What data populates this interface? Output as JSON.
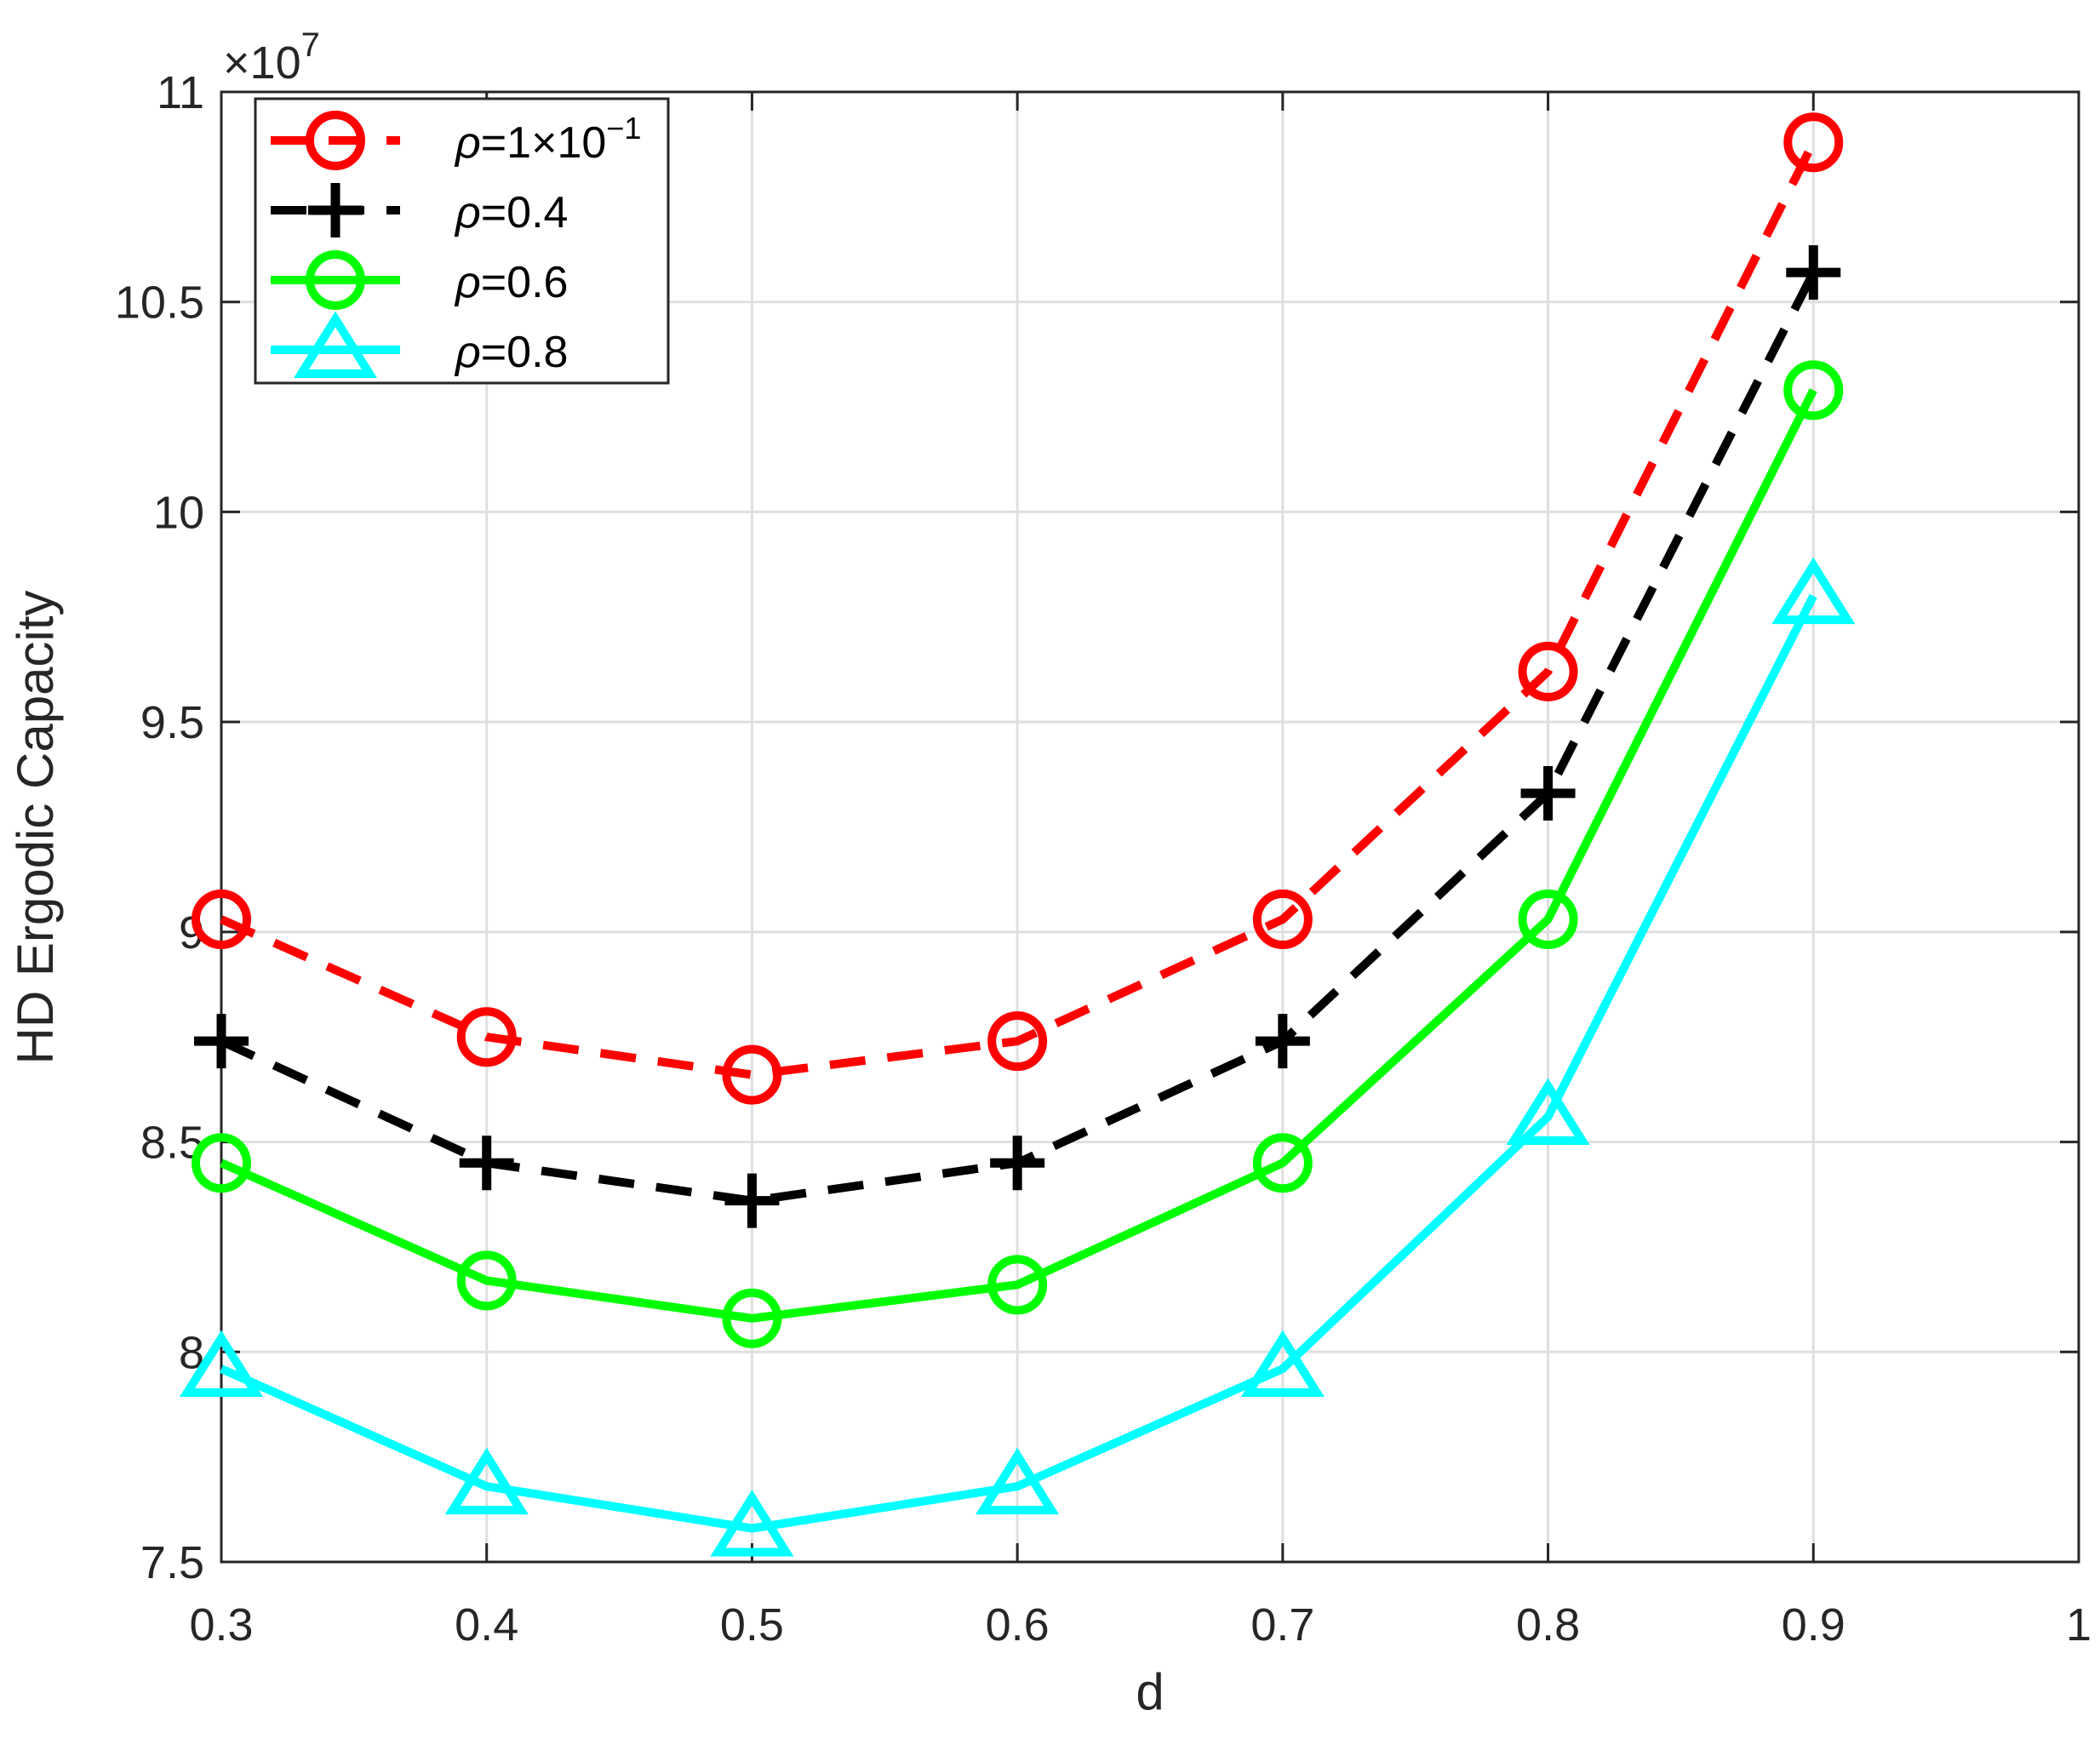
{
  "chart_data": {
    "type": "line",
    "title": "",
    "xlabel": "d",
    "ylabel": "HD Ergodic Capacity",
    "y_exponent_label": "×10",
    "y_exponent_power": "7",
    "xlim": [
      0.3,
      1
    ],
    "ylim": [
      7.5,
      11
    ],
    "x_ticks": [
      "0.3",
      "0.4",
      "0.5",
      "0.6",
      "0.7",
      "0.8",
      "0.9",
      "1"
    ],
    "y_ticks": [
      "7.5",
      "8",
      "8.5",
      "9",
      "9.5",
      "10",
      "10.5",
      "11"
    ],
    "grid": true,
    "legend_position": "top-left",
    "x": [
      0.3,
      0.4,
      0.5,
      0.6,
      0.7,
      0.8,
      0.9
    ],
    "series": [
      {
        "name": "ρ=1×10⁻¹",
        "legend_symbol": "ρ",
        "legend_rest": "=1×10",
        "legend_sup": "−1",
        "color": "#ff0000",
        "line": "dashed",
        "marker": "circle",
        "values": [
          9.03,
          8.75,
          8.66,
          8.74,
          9.03,
          9.62,
          10.88
        ]
      },
      {
        "name": "ρ=0.4",
        "legend_symbol": "ρ",
        "legend_rest": "=0.4",
        "legend_sup": "",
        "color": "#000000",
        "line": "dashed",
        "marker": "plus",
        "values": [
          8.74,
          8.45,
          8.36,
          8.45,
          8.74,
          9.33,
          10.57
        ]
      },
      {
        "name": "ρ=0.6",
        "legend_symbol": "ρ",
        "legend_rest": "=0.6",
        "legend_sup": "",
        "color": "#00ff00",
        "line": "solid",
        "marker": "circle",
        "values": [
          8.45,
          8.17,
          8.08,
          8.16,
          8.45,
          9.03,
          10.29
        ]
      },
      {
        "name": "ρ=0.8",
        "legend_symbol": "ρ",
        "legend_rest": "=0.8",
        "legend_sup": "",
        "color": "#00ffff",
        "line": "solid",
        "marker": "triangle",
        "values": [
          7.96,
          7.68,
          7.58,
          7.68,
          7.96,
          8.56,
          9.8
        ]
      }
    ]
  }
}
